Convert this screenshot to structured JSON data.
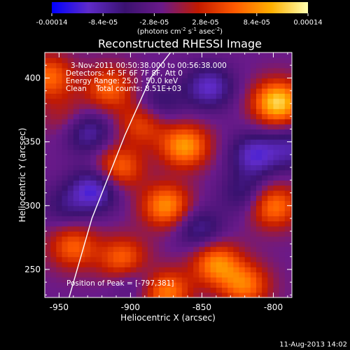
{
  "chart_data": {
    "type": "heatmap",
    "title": "Reconstructed RHESSI Image",
    "xlabel": "Heliocentric X (arcsec)",
    "ylabel": "Heliocentric Y (arcsec)",
    "xlim": [
      -960,
      -787
    ],
    "ylim": [
      228,
      420
    ],
    "x_ticks": [
      -950,
      -900,
      -850,
      -800
    ],
    "x_tick_labels": [
      "-950",
      "-900",
      "-850",
      "-800"
    ],
    "y_ticks": [
      250,
      300,
      350,
      400
    ],
    "y_tick_labels": [
      "250",
      "300",
      "350",
      "400"
    ],
    "colorbar": {
      "range": [
        -0.00014,
        0.00014
      ],
      "ticks": [
        -0.00014,
        -8.4e-05,
        -2.8e-05,
        2.8e-05,
        8.4e-05,
        0.00014
      ],
      "tick_labels": [
        "-0.00014",
        "-8.4e-05",
        "-2.8e-05",
        "2.8e-05",
        "8.4e-05",
        "0.00014"
      ],
      "units_parts": [
        "(photons cm",
        "-2",
        " s",
        "-1",
        " asec",
        "-2",
        ")"
      ],
      "colormap": [
        "#0000ff",
        "#5f2bc9",
        "#3a1270",
        "#6a1a8a",
        "#c21a00",
        "#ff5a00",
        "#ffb000",
        "#ffffb0"
      ]
    },
    "peak_values": [
      {
        "x": -797,
        "y": 381,
        "v": 0.00014
      },
      {
        "x": -862,
        "y": 347,
        "v": 0.00011
      },
      {
        "x": -875,
        "y": 300,
        "v": 0.000105
      },
      {
        "x": -840,
        "y": 255,
        "v": 0.0001
      },
      {
        "x": -875,
        "y": 233,
        "v": 9.5e-05
      },
      {
        "x": -908,
        "y": 330,
        "v": 8.5e-05
      },
      {
        "x": -905,
        "y": 258,
        "v": 9e-05
      },
      {
        "x": -800,
        "y": 300,
        "v": 9.5e-05
      },
      {
        "x": -820,
        "y": 238,
        "v": 9e-05
      },
      {
        "x": -940,
        "y": 268,
        "v": 8e-05
      },
      {
        "x": -957,
        "y": 401,
        "v": 8.5e-05
      },
      {
        "x": -915,
        "y": 392,
        "v": 8e-05
      },
      {
        "x": -892,
        "y": 365,
        "v": 7e-05
      },
      {
        "x": -945,
        "y": 370,
        "v": 3.5e-05
      },
      {
        "x": -925,
        "y": 313,
        "v": -9e-05
      },
      {
        "x": -930,
        "y": 358,
        "v": -7e-05
      },
      {
        "x": -845,
        "y": 393,
        "v": -8e-05
      },
      {
        "x": -813,
        "y": 340,
        "v": -8e-05
      },
      {
        "x": -787,
        "y": 345,
        "v": -6e-05
      },
      {
        "x": -852,
        "y": 282,
        "v": -6e-05
      },
      {
        "x": -880,
        "y": 380,
        "v": -5e-05
      },
      {
        "x": -820,
        "y": 310,
        "v": -5e-05
      },
      {
        "x": -898,
        "y": 243,
        "v": -4e-05
      },
      {
        "x": -945,
        "y": 300,
        "v": -4e-05
      }
    ],
    "limb_curve": [
      {
        "x": -943,
        "y": 228
      },
      {
        "x": -927,
        "y": 290
      },
      {
        "x": -904,
        "y": 355
      },
      {
        "x": -886,
        "y": 400
      },
      {
        "x": -872,
        "y": 420
      }
    ],
    "annotations": [
      "3-Nov-2011 00:50:38.000 to 00:56:38.000",
      "Detectors: 4F 5F 6F 7F 8F, Att 0",
      "Energy Range: 25.0 - 50.0 keV",
      "Clean    Total counts: 8.51E+03"
    ],
    "peak_label": "Position of Peak = [-797,381]",
    "grid": false,
    "legend": "colorbar-top"
  },
  "footer": {
    "date_stamp": "11-Aug-2013 14:02"
  }
}
